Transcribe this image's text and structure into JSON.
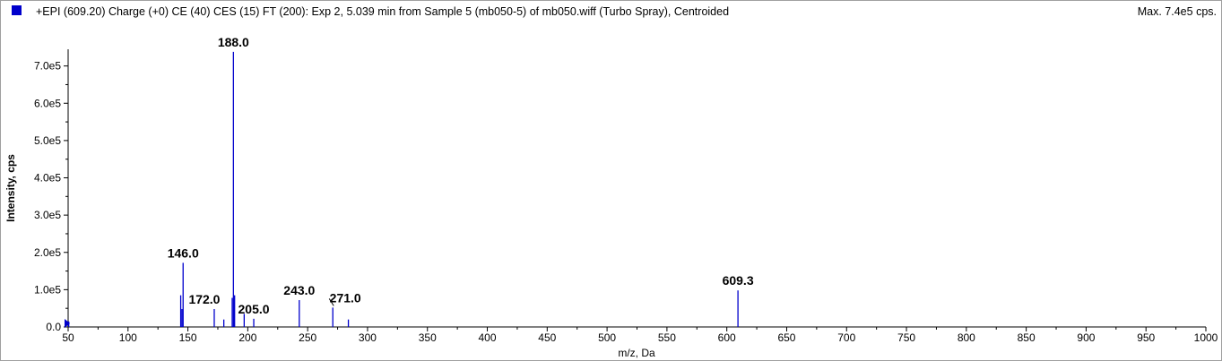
{
  "header": {
    "title": "+EPI (609.20) Charge (+0) CE (40) CES (15) FT (200): Exp 2, 5.039 min from Sample 5 (mb050-5) of mb050.wiff (Turbo Spray), Centroided",
    "max_label": "Max. 7.4e5 cps."
  },
  "colors": {
    "series": "#0000cc",
    "legend_swatch": "#0000cc"
  },
  "chart_data": {
    "type": "bar",
    "title": "+EPI (609.20) Charge (+0) CE (40) CES (15) FT (200): Exp 2, 5.039 min from Sample 5 (mb050-5) of mb050.wiff (Turbo Spray), Centroided",
    "xlabel": "m/z, Da",
    "ylabel": "Intensity, cps",
    "xlim": [
      50,
      1000
    ],
    "ylim": [
      0,
      740000
    ],
    "x_ticks": [
      "50",
      "100",
      "150",
      "200",
      "250",
      "300",
      "350",
      "400",
      "450",
      "500",
      "550",
      "600",
      "650",
      "700",
      "750",
      "800",
      "850",
      "900",
      "950",
      "1000"
    ],
    "y_ticks": [
      "0.0",
      "1.0e5",
      "2.0e5",
      "3.0e5",
      "4.0e5",
      "5.0e5",
      "6.0e5",
      "7.0e5"
    ],
    "grid": false,
    "peaks": [
      {
        "x": 50.5,
        "y": 15000
      },
      {
        "x": 144.0,
        "y": 85000
      },
      {
        "x": 145.0,
        "y": 48000
      },
      {
        "x": 146.0,
        "y": 172000
      },
      {
        "x": 172.0,
        "y": 48000
      },
      {
        "x": 180.0,
        "y": 20000
      },
      {
        "x": 187.0,
        "y": 78000
      },
      {
        "x": 188.0,
        "y": 738000
      },
      {
        "x": 189.0,
        "y": 85000
      },
      {
        "x": 197.0,
        "y": 35000
      },
      {
        "x": 205.0,
        "y": 22000
      },
      {
        "x": 243.0,
        "y": 72000
      },
      {
        "x": 271.0,
        "y": 52000
      },
      {
        "x": 284.0,
        "y": 20000
      },
      {
        "x": 609.3,
        "y": 98000
      }
    ],
    "labels": [
      {
        "text": "146.0",
        "x": 146.0
      },
      {
        "text": "172.0",
        "x": 172.0
      },
      {
        "text": "188.0",
        "x": 188.0
      },
      {
        "text": "205.0",
        "x": 205.0
      },
      {
        "text": "243.0",
        "x": 243.0
      },
      {
        "text": "271.0",
        "x": 271.0
      },
      {
        "text": "609.3",
        "x": 609.3
      }
    ]
  }
}
